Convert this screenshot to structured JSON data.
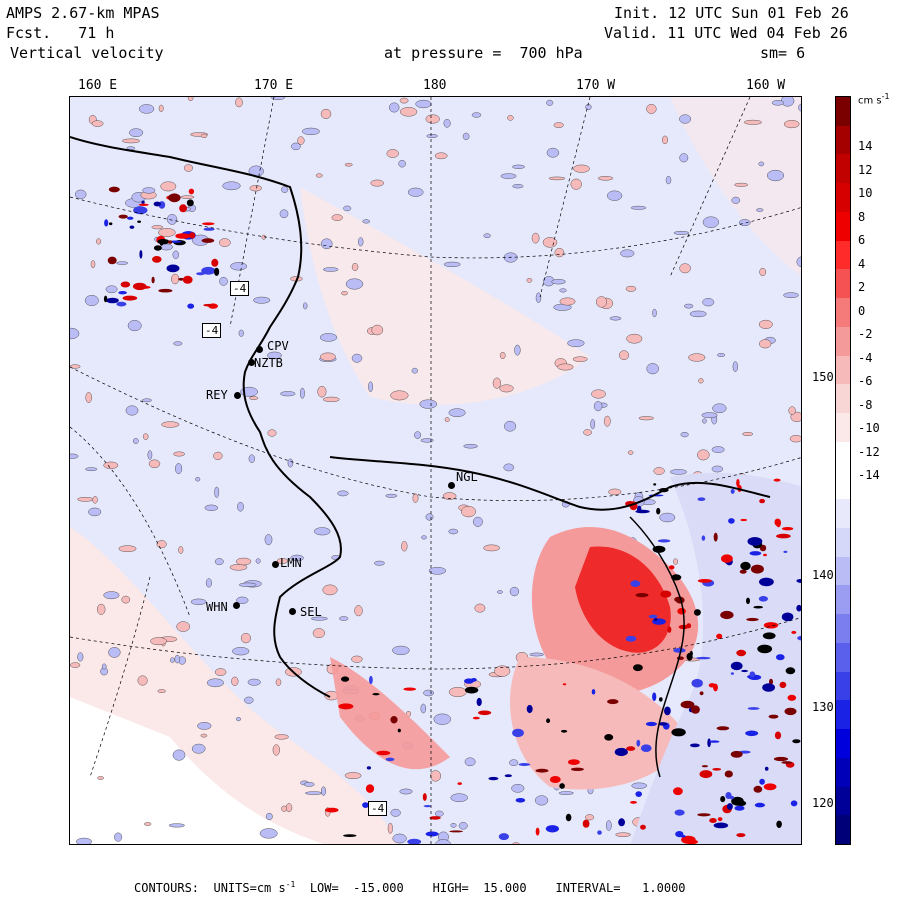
{
  "header": {
    "title": "AMPS 2.67-km MPAS",
    "forecast": "Fcst.   71 h",
    "field": "Vertical velocity",
    "init": "Init. 12 UTC Sun 01 Feb 26",
    "valid": "Valid. 11 UTC Wed 04 Feb 26",
    "pressure": "at pressure =  700 hPa",
    "smoothing": "sm= 6"
  },
  "longitude_labels": [
    "160 E",
    "170 E",
    "180",
    "170 W",
    "160 W"
  ],
  "latitude_labels": [
    "150 W",
    "140 W",
    "130 W",
    "120 W"
  ],
  "stations": [
    "CPV",
    "NZTB",
    "REY",
    "NGL",
    "LMN",
    "WHN",
    "SEL"
  ],
  "contour_boxes": [
    "-4",
    "-4",
    "-4"
  ],
  "colorbar": {
    "units": "cm s",
    "units_exp": "-1",
    "labels": [
      "14",
      "12",
      "10",
      "8",
      "6",
      "4",
      "2",
      "0",
      "-2",
      "-4",
      "-6",
      "-8",
      "-10",
      "-12",
      "-14"
    ],
    "colors": [
      "#7a0000",
      "#a50000",
      "#c10000",
      "#d70000",
      "#ee0000",
      "#ff2a2a",
      "#f55353",
      "#f57a7a",
      "#f59a9a",
      "#f7baba",
      "#f9d6d6",
      "#fbe8e8",
      "#ffffff",
      "#ffffff",
      "#e8e9fb",
      "#d6d8f9",
      "#babcf5",
      "#9a9df2",
      "#7a7eef",
      "#5a60ec",
      "#3a40e8",
      "#1a22e5",
      "#0000dd",
      "#0000b8",
      "#000098",
      "#000078"
    ]
  },
  "footer": {
    "contours": "CONTOURS:",
    "units_label": "UNITS=cm s",
    "units_exp": "-1",
    "low": "LOW=  -15.000",
    "high": "HIGH=  15.000",
    "interval": "INTERVAL=   1.0000"
  },
  "colors": {
    "background_field": "#e6e8fb",
    "positive_weak": "#f9d6d6",
    "negative_weak": "#d6d8f9",
    "positive_strong": "#e02020",
    "negative_strong": "#2030d0"
  }
}
